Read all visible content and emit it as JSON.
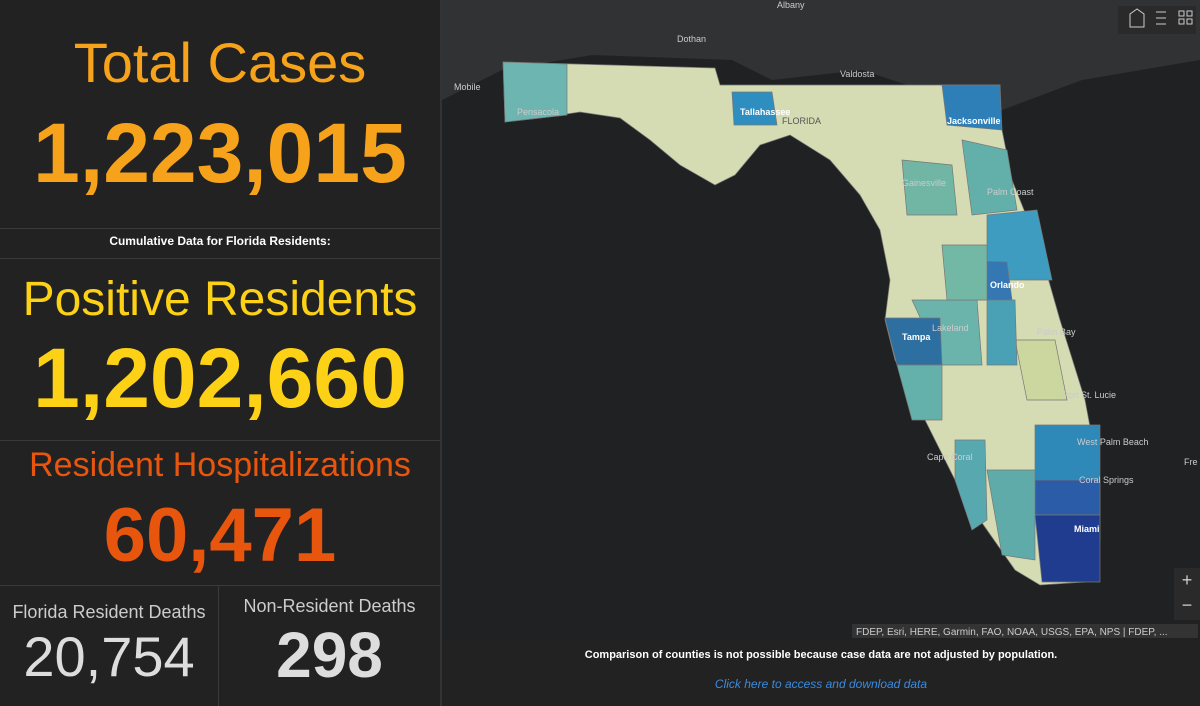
{
  "panels": {
    "total_cases": {
      "label": "Total Cases",
      "value": "1,223,015"
    },
    "subtitle": "Cumulative Data for Florida Residents:",
    "positive_residents": {
      "label": "Positive Residents",
      "value": "1,202,660"
    },
    "hospitalizations": {
      "label": "Resident Hospitalizations",
      "value": "60,471"
    },
    "resident_deaths": {
      "label": "Florida Resident Deaths",
      "value": "20,754"
    },
    "nonresident_deaths": {
      "label": "Non-Resident Deaths",
      "value": "298"
    }
  },
  "map": {
    "places": [
      "Albany",
      "Dothan",
      "Mobile",
      "Valdosta",
      "Pensacola",
      "Tallahassee",
      "FLORIDA",
      "Jacksonville",
      "Gainesville",
      "Palm Coast",
      "Orlando",
      "Tampa",
      "Lakeland",
      "Palm Bay",
      "Port St. Lucie",
      "West Palm Beach",
      "Cape Coral",
      "Coral Springs",
      "Miami",
      "Fre"
    ],
    "attribution": "FDEP, Esri, HERE, Garmin, FAO, NOAA, USGS, EPA, NPS | FDEP, ...",
    "zoom_in": "+",
    "zoom_out": "−"
  },
  "footer": {
    "note": "Comparison of counties is not possible because case data are not adjusted by population.",
    "link": "Click here to access and download data"
  }
}
